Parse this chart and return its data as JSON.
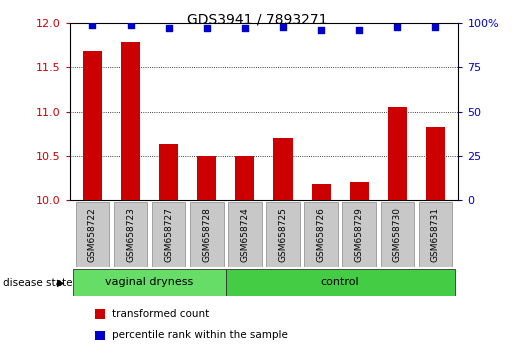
{
  "title": "GDS3941 / 7893271",
  "samples": [
    "GSM658722",
    "GSM658723",
    "GSM658727",
    "GSM658728",
    "GSM658724",
    "GSM658725",
    "GSM658726",
    "GSM658729",
    "GSM658730",
    "GSM658731"
  ],
  "bar_values": [
    11.68,
    11.78,
    10.63,
    10.5,
    10.5,
    10.7,
    10.18,
    10.2,
    11.05,
    10.83
  ],
  "dot_values": [
    99,
    99,
    97,
    97,
    97,
    98,
    96,
    96,
    98,
    98
  ],
  "bar_color": "#cc0000",
  "dot_color": "#0000cc",
  "ylim_left": [
    10,
    12
  ],
  "ylim_right": [
    0,
    100
  ],
  "yticks_left": [
    10,
    10.5,
    11,
    11.5,
    12
  ],
  "yticks_right": [
    0,
    25,
    50,
    75,
    100
  ],
  "groups": [
    {
      "label": "vaginal dryness",
      "start": 0,
      "end": 4,
      "color": "#66dd66"
    },
    {
      "label": "control",
      "start": 4,
      "end": 10,
      "color": "#44cc44"
    }
  ],
  "group_label": "disease state",
  "legend_bar": "transformed count",
  "legend_dot": "percentile rank within the sample",
  "bar_width": 0.5,
  "background_color": "#ffffff"
}
